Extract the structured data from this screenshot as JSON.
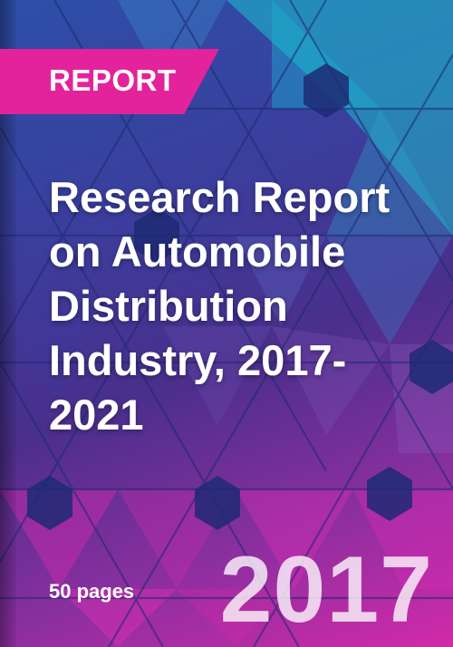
{
  "banner": {
    "label": "REPORT",
    "color": "#e3239b"
  },
  "title": "Research Report on Automobile Distribution Industry, 2017-2021",
  "pages": "50 pages",
  "year": "2017",
  "colors": {
    "accent": "#e3239b",
    "gradient_top": "#2d4fa8",
    "gradient_mid": "#4a2f8c",
    "gradient_bottom": "#d22aa8",
    "teal_tile": "#19c3cf"
  }
}
